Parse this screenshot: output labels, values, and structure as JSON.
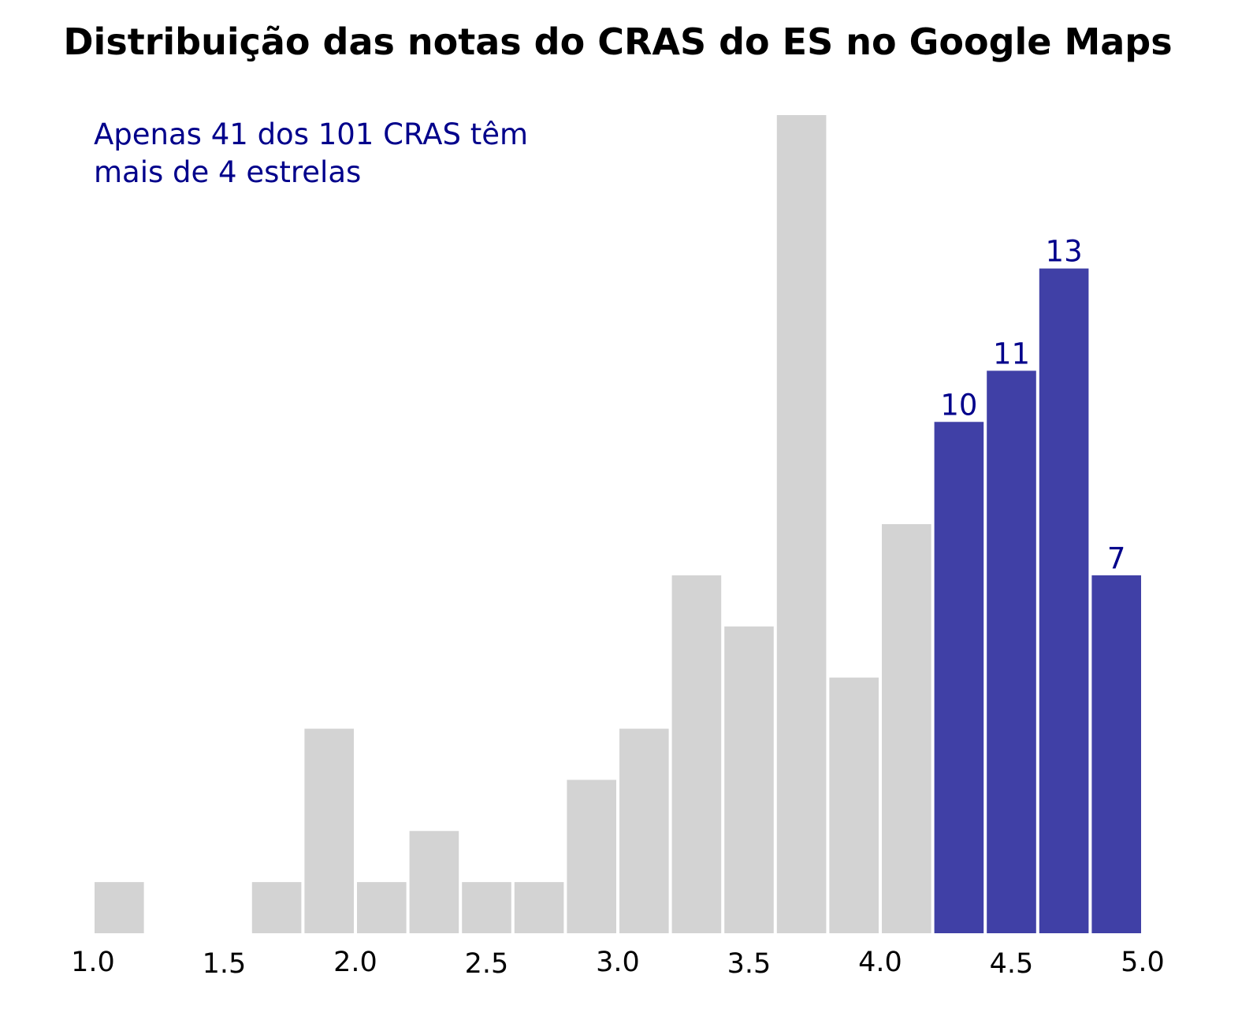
{
  "chart_data": {
    "type": "bar",
    "title": "Distribuição das notas do CRAS do ES no Google Maps",
    "annotation": [
      "Apenas 41 dos 101 CRAS têm",
      "mais de 4 estrelas"
    ],
    "xlabel": "",
    "ylabel": "",
    "xlim": [
      1.0,
      5.0
    ],
    "ylim": [
      0,
      16
    ],
    "xticks": [
      "1.0",
      "1.5",
      "2.0",
      "2.5",
      "3.0",
      "3.5",
      "4.0",
      "4.5",
      "5.0"
    ],
    "grid": false,
    "bins": [
      [
        1.0,
        1.2
      ],
      [
        1.2,
        1.4
      ],
      [
        1.4,
        1.6
      ],
      [
        1.6,
        1.8
      ],
      [
        1.8,
        2.0
      ],
      [
        2.0,
        2.2
      ],
      [
        2.2,
        2.4
      ],
      [
        2.4,
        2.6
      ],
      [
        2.6,
        2.8
      ],
      [
        2.8,
        3.0
      ],
      [
        3.0,
        3.2
      ],
      [
        3.2,
        3.4
      ],
      [
        3.4,
        3.6
      ],
      [
        3.6,
        3.8
      ],
      [
        3.8,
        4.0
      ],
      [
        4.0,
        4.2
      ],
      [
        4.2,
        4.4
      ],
      [
        4.4,
        4.6
      ],
      [
        4.6,
        4.8
      ],
      [
        4.8,
        5.0
      ]
    ],
    "values": [
      1,
      0,
      0,
      1,
      4,
      1,
      2,
      1,
      1,
      3,
      4,
      7,
      6,
      16,
      5,
      8,
      10,
      11,
      13,
      7
    ],
    "highlighted": [
      false,
      false,
      false,
      false,
      false,
      false,
      false,
      false,
      false,
      false,
      false,
      false,
      false,
      false,
      false,
      false,
      true,
      true,
      true,
      true
    ],
    "value_labels": [
      "",
      "",
      "",
      "",
      "",
      "",
      "",
      "",
      "",
      "",
      "",
      "",
      "",
      "",
      "",
      "",
      "10",
      "11",
      "13",
      "7"
    ],
    "colors": {
      "default": "#d3d3d3",
      "highlight": "#4040a6",
      "annotation": "#00008b"
    }
  }
}
